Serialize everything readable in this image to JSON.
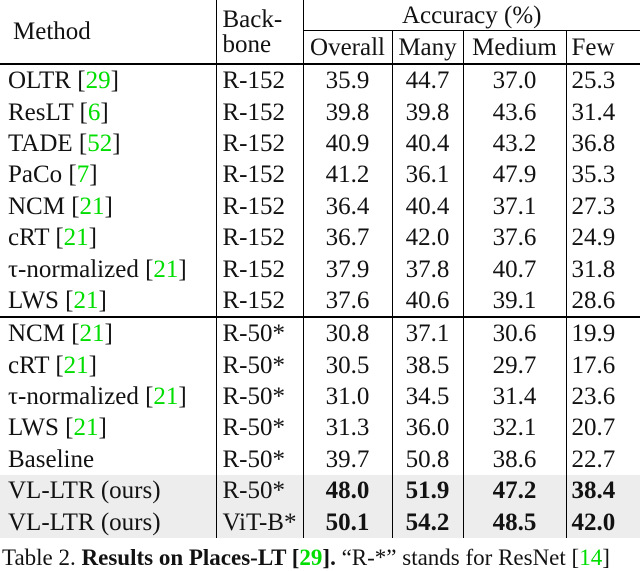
{
  "colors": {
    "cite_green": "#00DE00",
    "row_highlight": "#EDEDED",
    "text": "#121212"
  },
  "table": {
    "header": {
      "method": "Method",
      "backbone_line1": "Back-",
      "backbone_line2": "bone",
      "accuracy": "Accuracy (%)",
      "subcols": [
        "Overall",
        "Many",
        "Medium",
        "Few"
      ]
    },
    "rows": [
      {
        "method": "OLTR",
        "cite": "29",
        "backbone": "R-152",
        "overall": "35.9",
        "many": "44.7",
        "medium": "37.0",
        "few": "25.3",
        "bold": false,
        "highlight": false,
        "rule_above": false
      },
      {
        "method": "ResLT",
        "cite": "6",
        "backbone": "R-152",
        "overall": "39.8",
        "many": "39.8",
        "medium": "43.6",
        "few": "31.4",
        "bold": false,
        "highlight": false,
        "rule_above": false
      },
      {
        "method": "TADE",
        "cite": "52",
        "backbone": "R-152",
        "overall": "40.9",
        "many": "40.4",
        "medium": "43.2",
        "few": "36.8",
        "bold": false,
        "highlight": false,
        "rule_above": false
      },
      {
        "method": "PaCo",
        "cite": "7",
        "backbone": "R-152",
        "overall": "41.2",
        "many": "36.1",
        "medium": "47.9",
        "few": "35.3",
        "bold": false,
        "highlight": false,
        "rule_above": false
      },
      {
        "method": "NCM",
        "cite": "21",
        "backbone": "R-152",
        "overall": "36.4",
        "many": "40.4",
        "medium": "37.1",
        "few": "27.3",
        "bold": false,
        "highlight": false,
        "rule_above": false
      },
      {
        "method": "cRT",
        "cite": "21",
        "backbone": "R-152",
        "overall": "36.7",
        "many": "42.0",
        "medium": "37.6",
        "few": "24.9",
        "bold": false,
        "highlight": false,
        "rule_above": false
      },
      {
        "method": "τ-normalized",
        "cite": "21",
        "backbone": "R-152",
        "overall": "37.9",
        "many": "37.8",
        "medium": "40.7",
        "few": "31.8",
        "bold": false,
        "highlight": false,
        "rule_above": false
      },
      {
        "method": "LWS",
        "cite": "21",
        "backbone": "R-152",
        "overall": "37.6",
        "many": "40.6",
        "medium": "39.1",
        "few": "28.6",
        "bold": false,
        "highlight": false,
        "rule_above": false
      },
      {
        "method": "NCM",
        "cite": "21",
        "backbone": "R-50*",
        "overall": "30.8",
        "many": "37.1",
        "medium": "30.6",
        "few": "19.9",
        "bold": false,
        "highlight": false,
        "rule_above": true
      },
      {
        "method": "cRT",
        "cite": "21",
        "backbone": "R-50*",
        "overall": "30.5",
        "many": "38.5",
        "medium": "29.7",
        "few": "17.6",
        "bold": false,
        "highlight": false,
        "rule_above": false
      },
      {
        "method": "τ-normalized",
        "cite": "21",
        "backbone": "R-50*",
        "overall": "31.0",
        "many": "34.5",
        "medium": "31.4",
        "few": "23.6",
        "bold": false,
        "highlight": false,
        "rule_above": false
      },
      {
        "method": "LWS",
        "cite": "21",
        "backbone": "R-50*",
        "overall": "31.3",
        "many": "36.0",
        "medium": "32.1",
        "few": "20.7",
        "bold": false,
        "highlight": false,
        "rule_above": false
      },
      {
        "method": "Baseline",
        "cite": "",
        "backbone": "R-50*",
        "overall": "39.7",
        "many": "50.8",
        "medium": "38.6",
        "few": "22.7",
        "bold": false,
        "highlight": false,
        "rule_above": false
      },
      {
        "method": "VL-LTR (ours)",
        "cite": "",
        "backbone": "R-50*",
        "overall": "48.0",
        "many": "51.9",
        "medium": "47.2",
        "few": "38.4",
        "bold": true,
        "highlight": true,
        "rule_above": false
      },
      {
        "method": "VL-LTR (ours)",
        "cite": "",
        "backbone": "ViT-B*",
        "overall": "50.1",
        "many": "54.2",
        "medium": "48.5",
        "few": "42.0",
        "bold": true,
        "highlight": true,
        "rule_above": false
      }
    ]
  },
  "caption": {
    "prefix": "Table 2. ",
    "bold_pre": "Results on Places-LT [",
    "bold_cite": "29",
    "bold_post": "].",
    "rest_pre": " “R-*” stands for ResNet [",
    "rest_cite": "14",
    "rest_post": "]"
  }
}
